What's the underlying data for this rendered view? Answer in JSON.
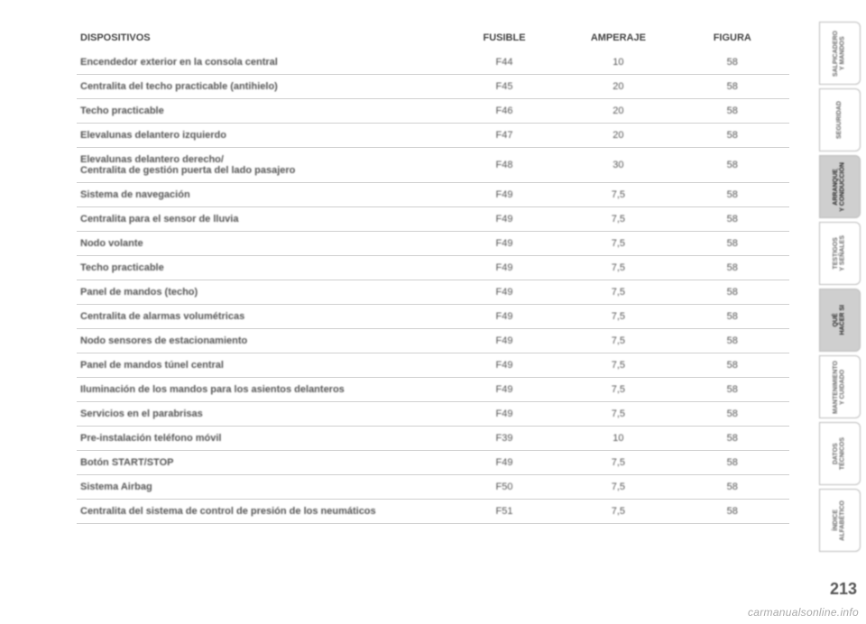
{
  "table": {
    "headers": [
      "DISPOSITIVOS",
      "FUSIBLE",
      "AMPERAJE",
      "FIGURA"
    ],
    "rows": [
      [
        "Encendedor exterior en la consola central",
        "F44",
        "10",
        "58"
      ],
      [
        "Centralita del techo practicable (antihielo)",
        "F45",
        "20",
        "58"
      ],
      [
        "Techo practicable",
        "F46",
        "20",
        "58"
      ],
      [
        "Elevalunas delantero izquierdo",
        "F47",
        "20",
        "58"
      ],
      [
        "Elevalunas delantero derecho/\nCentralita de gestión puerta del lado pasajero",
        "F48",
        "30",
        "58"
      ],
      [
        "Sistema de navegación",
        "F49",
        "7,5",
        "58"
      ],
      [
        "Centralita para el sensor de lluvia",
        "F49",
        "7,5",
        "58"
      ],
      [
        "Nodo volante",
        "F49",
        "7,5",
        "58"
      ],
      [
        "Techo practicable",
        "F49",
        "7,5",
        "58"
      ],
      [
        "Panel de mandos (techo)",
        "F49",
        "7,5",
        "58"
      ],
      [
        "Centralita de alarmas volumétricas",
        "F49",
        "7,5",
        "58"
      ],
      [
        "Nodo sensores de estacionamiento",
        "F49",
        "7,5",
        "58"
      ],
      [
        "Panel de mandos túnel central",
        "F49",
        "7,5",
        "58"
      ],
      [
        "Iluminación de los mandos para los asientos delanteros",
        "F49",
        "7,5",
        "58"
      ],
      [
        "Servicios en el parabrisas",
        "F49",
        "7,5",
        "58"
      ],
      [
        "Pre-instalación teléfono móvil",
        "F39",
        "10",
        "58"
      ],
      [
        "Botón START/STOP",
        "F49",
        "7,5",
        "58"
      ],
      [
        "Sistema Airbag",
        "F50",
        "7,5",
        "58"
      ],
      [
        "Centralita del sistema de control de presión de los neumáticos",
        "F51",
        "7,5",
        "58"
      ]
    ]
  },
  "tabs": [
    {
      "label": "SALPICADERO\nY MANDOS",
      "active": false
    },
    {
      "label": "SEGURIDAD",
      "active": false
    },
    {
      "label": "ARRANQUE\nY CONDUCCIÓN",
      "active": true
    },
    {
      "label": "TESTIGOS\nY SEÑALES",
      "active": false
    },
    {
      "label": "QUÉ\nHACER SI",
      "active": true
    },
    {
      "label": "MANTENIMIENTO\nY CUIDADO",
      "active": false
    },
    {
      "label": "DATOS\nTÉCNICOS",
      "active": false
    },
    {
      "label": "ÍNDICE\nALFABÉTICO",
      "active": false
    }
  ],
  "page_number": "213",
  "watermark": "carmanualsonline.info",
  "colors": {
    "text": "#555555",
    "border": "#d0d0d0",
    "tab_active_bg": "#cfcfcf"
  }
}
